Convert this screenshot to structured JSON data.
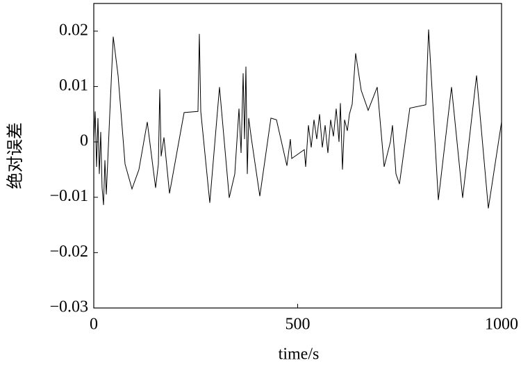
{
  "chart_data": {
    "type": "line",
    "x_label": "time/s",
    "y_label": "绝对误差",
    "xlim": [
      0,
      1000
    ],
    "xticks": [
      0,
      500,
      1000
    ],
    "ylim": [
      -0.03,
      0.025
    ],
    "yticks": [
      {
        "value": -0.03,
        "label": "−0.03"
      },
      {
        "value": -0.02,
        "label": "−0.02"
      },
      {
        "value": -0.01,
        "label": "−0.01"
      },
      0,
      0.01,
      0.02
    ],
    "series": [
      {
        "color": "#000000",
        "x": [
          0,
          3.4,
          6.8,
          10.2,
          13.6,
          17,
          20.4,
          23.9,
          27.3,
          30.7,
          39.2,
          47.7,
          59.6,
          76.7,
          93.7,
          110.7,
          131.2,
          151.6,
          158.4,
          161.8,
          165.2,
          172.1,
          185.7,
          221.5,
          255.5,
          258.9,
          262.4,
          284.5,
          308.3,
          332.2,
          345.8,
          356.1,
          361.2,
          366.3,
          369.7,
          373.1,
          376.5,
          379.9,
          386.7,
          407.2,
          434.4,
          448,
          473.6,
          482.1,
          485.5,
          516.2,
          519.6,
          526.4,
          533.2,
          540,
          546.8,
          553.7,
          560.5,
          567.3,
          574.1,
          580.9,
          587.7,
          594.5,
          601.4,
          604.8,
          609.9,
          615,
          621.8,
          626.9,
          633.7,
          642.2,
          655.9,
          672.9,
          695.1,
          712.1,
          727.4,
          732.5,
          741.1,
          749.6,
          775.1,
          814.3,
          821.1,
          845,
          877.3,
          904.6,
          938.7,
          967.6,
          1000
        ],
        "values": [
          0,
          0.0055,
          -0.0045,
          0.0043,
          -0.0058,
          0.0018,
          -0.0083,
          -0.0114,
          -0.0033,
          -0.0095,
          0.005,
          0.019,
          0.012,
          -0.004,
          -0.0085,
          -0.005,
          0.0036,
          -0.0083,
          -0.004,
          0.0095,
          -0.0026,
          0.0008,
          -0.0093,
          0.0053,
          0.0055,
          0.0195,
          0.0055,
          -0.011,
          0.0099,
          -0.0101,
          -0.0058,
          0.006,
          -0.002,
          0.0124,
          0.0005,
          0.0136,
          -0.0058,
          0.0043,
          0.0005,
          -0.0098,
          0.0043,
          0.004,
          -0.0043,
          0.0005,
          -0.003,
          -0.0014,
          -0.0045,
          0.003,
          -0.001,
          0.004,
          0.0005,
          0.005,
          -0.001,
          0.003,
          -0.002,
          0.004,
          0.001,
          0.006,
          0,
          0.007,
          -0.005,
          0.004,
          0.002,
          0.005,
          0.0068,
          0.016,
          0.0093,
          0.0057,
          0.0099,
          -0.0045,
          0,
          0.003,
          -0.0058,
          -0.0076,
          0.0061,
          0.0067,
          0.0203,
          -0.0105,
          0.0099,
          -0.0101,
          0.012,
          -0.012,
          0.0036
        ]
      }
    ]
  }
}
